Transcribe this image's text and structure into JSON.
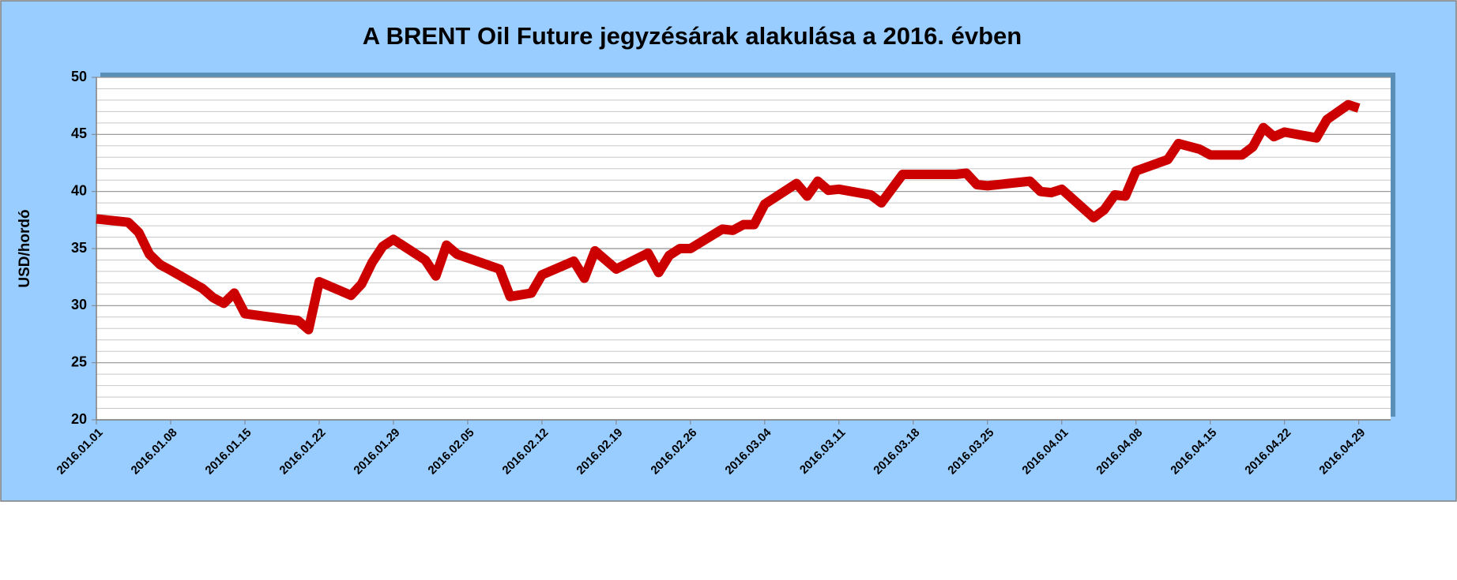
{
  "chart_data": {
    "type": "line",
    "title": "A BRENT Oil Future jegyzésárak alakulása a 2016. évben",
    "y_label": "USD/hordó",
    "x": [
      "2016.01.01",
      "2016.01.04",
      "2016.01.05",
      "2016.01.06",
      "2016.01.07",
      "2016.01.08",
      "2016.01.11",
      "2016.01.12",
      "2016.01.13",
      "2016.01.14",
      "2016.01.15",
      "2016.01.19",
      "2016.01.20",
      "2016.01.21",
      "2016.01.22",
      "2016.01.25",
      "2016.01.26",
      "2016.01.27",
      "2016.01.28",
      "2016.01.29",
      "2016.02.01",
      "2016.02.02",
      "2016.02.03",
      "2016.02.04",
      "2016.02.08",
      "2016.02.09",
      "2016.02.11",
      "2016.02.12",
      "2016.02.15",
      "2016.02.16",
      "2016.02.17",
      "2016.02.19",
      "2016.02.22",
      "2016.02.23",
      "2016.02.24",
      "2016.02.25",
      "2016.02.26",
      "2016.02.29",
      "2016.03.01",
      "2016.03.02",
      "2016.03.03",
      "2016.03.04",
      "2016.03.07",
      "2016.03.08",
      "2016.03.09",
      "2016.03.10",
      "2016.03.11",
      "2016.03.14",
      "2016.03.15",
      "2016.03.17",
      "2016.03.21",
      "2016.03.22",
      "2016.03.23",
      "2016.03.24",
      "2016.03.25",
      "2016.03.29",
      "2016.03.30",
      "2016.03.31",
      "2016.04.01",
      "2016.04.04",
      "2016.04.05",
      "2016.04.06",
      "2016.04.07",
      "2016.04.08",
      "2016.04.11",
      "2016.04.12",
      "2016.04.14",
      "2016.04.15",
      "2016.04.18",
      "2016.04.19",
      "2016.04.20",
      "2016.04.21",
      "2016.04.22",
      "2016.04.25",
      "2016.04.26",
      "2016.04.28",
      "2016.04.29"
    ],
    "series": [
      {
        "name": "BRENT",
        "color": "#cc0000",
        "values": [
          37.6,
          37.3,
          36.4,
          34.5,
          33.6,
          33.1,
          31.5,
          30.7,
          30.2,
          31.1,
          29.3,
          28.8,
          28.7,
          27.9,
          32.1,
          30.9,
          31.9,
          33.8,
          35.2,
          35.8,
          34.0,
          32.6,
          35.3,
          34.5,
          33.2,
          30.8,
          31.1,
          32.7,
          33.9,
          32.4,
          34.8,
          33.2,
          34.6,
          32.9,
          34.4,
          35.0,
          35.0,
          36.7,
          36.6,
          37.1,
          37.1,
          38.9,
          40.7,
          39.6,
          40.9,
          40.1,
          40.2,
          39.7,
          39.0,
          41.5,
          41.5,
          41.5,
          41.6,
          40.6,
          40.5,
          40.9,
          40.0,
          39.9,
          40.2,
          37.7,
          38.4,
          39.7,
          39.6,
          41.8,
          42.8,
          44.2,
          43.7,
          43.2,
          43.2,
          43.9,
          45.6,
          44.8,
          45.2,
          44.7,
          46.3,
          47.6,
          47.3
        ]
      }
    ],
    "xlim": [
      "2016.01.01",
      "2016.05.02"
    ],
    "xticks": [
      "2016.01.01",
      "2016.01.08",
      "2016.01.15",
      "2016.01.22",
      "2016.01.29",
      "2016.02.05",
      "2016.02.12",
      "2016.02.19",
      "2016.02.26",
      "2016.03.04",
      "2016.03.11",
      "2016.03.18",
      "2016.03.25",
      "2016.04.01",
      "2016.04.08",
      "2016.04.15",
      "2016.04.22",
      "2016.04.29"
    ],
    "ylim": [
      20,
      50
    ],
    "yticks": [
      20,
      25,
      30,
      35,
      40,
      45,
      50
    ],
    "grid": true,
    "minor_grid": true
  }
}
